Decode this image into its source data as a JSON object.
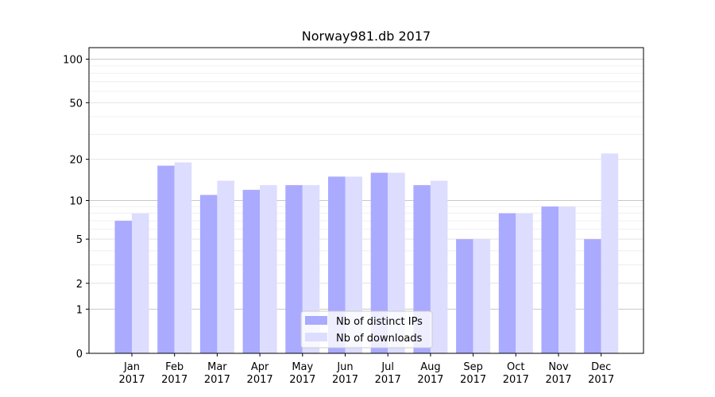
{
  "chart_data": {
    "type": "bar",
    "title": "Norway981.db 2017",
    "xlabel": "",
    "ylabel": "",
    "scale": "symlog",
    "ylim": [
      0,
      120
    ],
    "yticks": [
      0,
      1,
      2,
      5,
      10,
      20,
      50,
      100
    ],
    "grid": true,
    "legend_position": "bottom-center",
    "categories": [
      [
        "Jan",
        "2017"
      ],
      [
        "Feb",
        "2017"
      ],
      [
        "Mar",
        "2017"
      ],
      [
        "Apr",
        "2017"
      ],
      [
        "May",
        "2017"
      ],
      [
        "Jun",
        "2017"
      ],
      [
        "Jul",
        "2017"
      ],
      [
        "Aug",
        "2017"
      ],
      [
        "Sep",
        "2017"
      ],
      [
        "Oct",
        "2017"
      ],
      [
        "Nov",
        "2017"
      ],
      [
        "Dec",
        "2017"
      ]
    ],
    "series": [
      {
        "name": "Nb of distinct IPs",
        "color": "#aaaaff",
        "values": [
          7,
          18,
          11,
          12,
          13,
          15,
          16,
          13,
          5,
          8,
          9,
          5
        ]
      },
      {
        "name": "Nb of downloads",
        "color": "#ddddff",
        "values": [
          8,
          19,
          14,
          13,
          13,
          15,
          16,
          14,
          5,
          8,
          9,
          22
        ]
      }
    ]
  }
}
